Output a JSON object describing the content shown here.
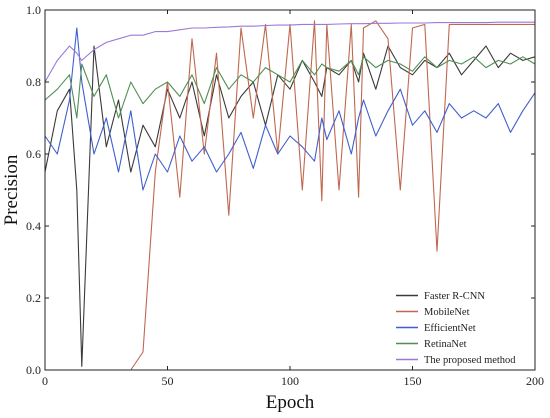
{
  "chart_data": {
    "type": "line",
    "title": "",
    "xlabel": "Epoch",
    "ylabel": "Precision",
    "xlim": [
      0,
      200
    ],
    "ylim": [
      0.0,
      1.0
    ],
    "x_ticks": [
      "0",
      "50",
      "100",
      "150",
      "200"
    ],
    "y_ticks": [
      "0.0",
      "0.2",
      "0.4",
      "0.6",
      "0.8",
      "1.0"
    ],
    "grid": false,
    "legend_position": "bottom-right",
    "x": [
      0,
      5,
      10,
      13,
      15,
      20,
      25,
      30,
      35,
      40,
      45,
      50,
      55,
      60,
      65,
      70,
      75,
      80,
      85,
      90,
      95,
      100,
      105,
      110,
      113,
      115,
      120,
      125,
      128,
      130,
      135,
      140,
      145,
      150,
      155,
      160,
      165,
      170,
      175,
      180,
      185,
      190,
      195,
      200
    ],
    "series": [
      {
        "name": "Faster R-CNN",
        "color": "#3a3a3a",
        "values": [
          0.55,
          0.72,
          0.78,
          0.5,
          0.01,
          0.9,
          0.62,
          0.75,
          0.55,
          0.68,
          0.62,
          0.78,
          0.7,
          0.8,
          0.65,
          0.82,
          0.7,
          0.76,
          0.8,
          0.68,
          0.82,
          0.78,
          0.86,
          0.8,
          0.76,
          0.84,
          0.82,
          0.86,
          0.8,
          0.88,
          0.78,
          0.9,
          0.84,
          0.82,
          0.86,
          0.84,
          0.88,
          0.82,
          0.86,
          0.9,
          0.84,
          0.88,
          0.86,
          0.87
        ]
      },
      {
        "name": "MobileNet",
        "color": "#c0684f",
        "values": [
          0.0,
          0.0,
          0.0,
          0.0,
          0.0,
          0.0,
          0.0,
          0.0,
          0.0,
          0.05,
          0.55,
          0.8,
          0.48,
          0.92,
          0.6,
          0.88,
          0.43,
          0.95,
          0.7,
          0.96,
          0.6,
          0.96,
          0.5,
          0.97,
          0.47,
          0.96,
          0.5,
          0.96,
          0.48,
          0.95,
          0.97,
          0.92,
          0.5,
          0.95,
          0.96,
          0.33,
          0.96,
          0.96,
          0.96,
          0.96,
          0.96,
          0.96,
          0.96,
          0.96
        ]
      },
      {
        "name": "EfficientNet",
        "color": "#3f5fd0",
        "values": [
          0.65,
          0.6,
          0.75,
          0.95,
          0.8,
          0.6,
          0.7,
          0.55,
          0.72,
          0.5,
          0.6,
          0.55,
          0.65,
          0.58,
          0.62,
          0.55,
          0.6,
          0.66,
          0.56,
          0.68,
          0.6,
          0.65,
          0.62,
          0.58,
          0.7,
          0.64,
          0.72,
          0.6,
          0.7,
          0.75,
          0.65,
          0.72,
          0.78,
          0.68,
          0.72,
          0.66,
          0.74,
          0.7,
          0.72,
          0.7,
          0.74,
          0.66,
          0.72,
          0.77
        ]
      },
      {
        "name": "RetinaNet",
        "color": "#4f8f54",
        "values": [
          0.75,
          0.78,
          0.82,
          0.7,
          0.85,
          0.76,
          0.82,
          0.7,
          0.8,
          0.74,
          0.78,
          0.8,
          0.76,
          0.82,
          0.74,
          0.84,
          0.78,
          0.82,
          0.8,
          0.84,
          0.82,
          0.8,
          0.86,
          0.82,
          0.85,
          0.84,
          0.83,
          0.86,
          0.82,
          0.87,
          0.84,
          0.86,
          0.85,
          0.83,
          0.87,
          0.84,
          0.86,
          0.85,
          0.87,
          0.84,
          0.86,
          0.85,
          0.87,
          0.85
        ]
      },
      {
        "name": "The proposed method",
        "color": "#9a7ad8",
        "values": [
          0.8,
          0.86,
          0.9,
          0.88,
          0.86,
          0.89,
          0.91,
          0.92,
          0.93,
          0.93,
          0.94,
          0.94,
          0.945,
          0.95,
          0.95,
          0.952,
          0.953,
          0.955,
          0.955,
          0.957,
          0.958,
          0.958,
          0.96,
          0.96,
          0.96,
          0.96,
          0.961,
          0.962,
          0.962,
          0.962,
          0.963,
          0.963,
          0.964,
          0.964,
          0.964,
          0.965,
          0.965,
          0.965,
          0.965,
          0.965,
          0.966,
          0.966,
          0.966,
          0.966
        ]
      }
    ]
  }
}
